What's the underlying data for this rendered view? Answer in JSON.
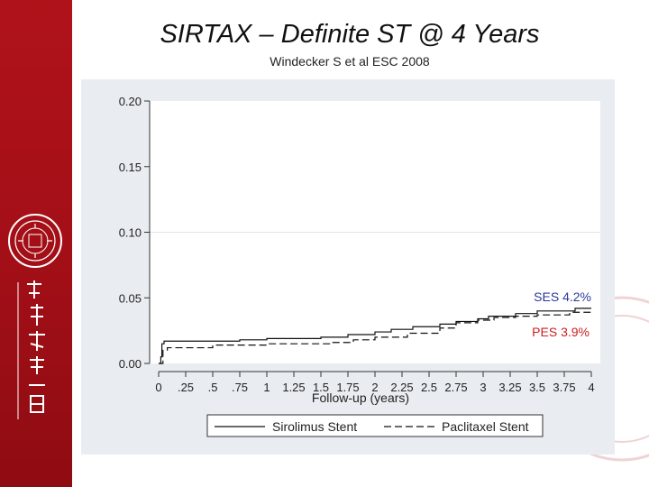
{
  "slide": {
    "title": "SIRTAX – Definite ST @ 4 Years",
    "subtitle": "Windecker S et al ESC 2008"
  },
  "colors": {
    "band": "#a80f18",
    "panel_bg": "#e9edf1",
    "plot_bg": "#ffffff",
    "ses_label": "#2b3a9a",
    "pes_label": "#cc1f1f"
  },
  "chart_data": {
    "type": "line",
    "xlabel": "Follow-up (years)",
    "ylabel": "",
    "xlim": [
      0,
      4
    ],
    "ylim": [
      0,
      0.2
    ],
    "x_ticks": [
      0,
      0.25,
      0.5,
      0.75,
      1,
      1.25,
      1.5,
      1.75,
      2,
      2.25,
      2.5,
      2.75,
      3,
      3.25,
      3.5,
      3.75,
      4
    ],
    "x_tick_labels": [
      "0",
      ".25",
      ".5",
      ".75",
      "1",
      "1.25",
      "1.5",
      "1.75",
      "2",
      "2.25",
      "2.5",
      "2.75",
      "3",
      "3.25",
      "3.5",
      "3.75",
      "4"
    ],
    "y_ticks": [
      0,
      0.05,
      0.1,
      0.15,
      0.2
    ],
    "y_tick_labels": [
      "0.00",
      "0.05",
      "0.10",
      "0.15",
      "0.20"
    ],
    "grid": "horizontal at 0.10",
    "legend_position": "bottom",
    "series": [
      {
        "name": "Sirolimus Stent",
        "style": "solid",
        "points": [
          [
            0,
            0
          ],
          [
            0.02,
            0.005
          ],
          [
            0.03,
            0.015
          ],
          [
            0.05,
            0.017
          ],
          [
            0.75,
            0.018
          ],
          [
            1.0,
            0.019
          ],
          [
            1.5,
            0.02
          ],
          [
            1.75,
            0.022
          ],
          [
            2.0,
            0.024
          ],
          [
            2.15,
            0.026
          ],
          [
            2.35,
            0.028
          ],
          [
            2.6,
            0.03
          ],
          [
            2.75,
            0.032
          ],
          [
            2.95,
            0.034
          ],
          [
            3.05,
            0.036
          ],
          [
            3.3,
            0.038
          ],
          [
            3.5,
            0.04
          ],
          [
            3.85,
            0.042
          ],
          [
            4.0,
            0.042
          ]
        ]
      },
      {
        "name": "Paclitaxel Stent",
        "style": "dashed",
        "points": [
          [
            0,
            0
          ],
          [
            0.04,
            0.01
          ],
          [
            0.08,
            0.012
          ],
          [
            0.5,
            0.014
          ],
          [
            1.0,
            0.015
          ],
          [
            1.6,
            0.016
          ],
          [
            1.8,
            0.018
          ],
          [
            2.0,
            0.02
          ],
          [
            2.3,
            0.023
          ],
          [
            2.6,
            0.027
          ],
          [
            2.75,
            0.031
          ],
          [
            2.95,
            0.033
          ],
          [
            3.1,
            0.035
          ],
          [
            3.3,
            0.036
          ],
          [
            3.5,
            0.037
          ],
          [
            3.8,
            0.039
          ],
          [
            4.0,
            0.039
          ]
        ]
      }
    ],
    "annotations": [
      {
        "text": "SES 4.2%",
        "color": "#2b3a9a"
      },
      {
        "text": "PES 3.9%",
        "color": "#cc1f1f"
      }
    ]
  }
}
